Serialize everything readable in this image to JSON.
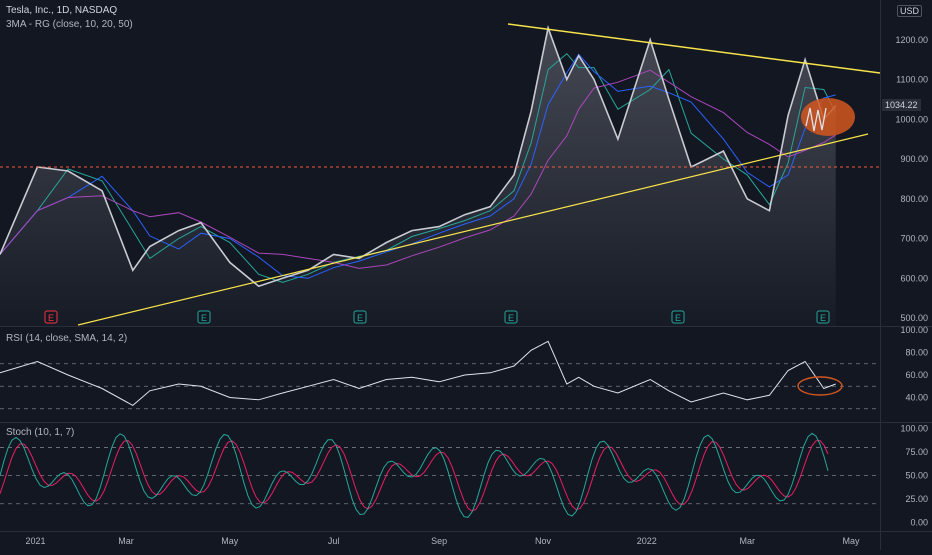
{
  "symbol_title": "Tesla, Inc., 1D, NASDAQ",
  "indicator_ma": "3MA - RG (close, 10, 20, 50)",
  "indicator_rsi": "RSI (14, close, SMA, 14, 2)",
  "indicator_stoch": "Stoch (10, 1, 7)",
  "currency": "USD",
  "last_price": "1034.22",
  "colors": {
    "background": "#131722",
    "price": "#c9cbd2",
    "ma_fast": "#26a69a",
    "ma_mid": "#2962ff",
    "ma_slow": "#ab47bc",
    "trendline": "#f7e34b",
    "support_level": "#f15a3a",
    "highlight": "#d2571f",
    "rsi": "#e0e3eb",
    "stoch_k": "#26a69a",
    "stoch_d": "#e91e63",
    "earnings_up": "#26a69a",
    "earnings_down": "#f23645"
  },
  "chart_data": [
    {
      "type": "line",
      "panel": "price",
      "x_tick_labels": [
        "2021",
        "Mar",
        "May",
        "Jul",
        "Sep",
        "Nov",
        "2022",
        "Mar",
        "May"
      ],
      "y_tick_labels": [
        "500.00",
        "600.00",
        "700.00",
        "800.00",
        "900.00",
        "1000.00",
        "1100.00",
        "1200.00"
      ],
      "ylim": [
        480,
        1300
      ],
      "scale": "linear",
      "x": [
        "2020-12-17",
        "2021-01-08",
        "2021-01-26",
        "2021-02-15",
        "2021-03-05",
        "2021-03-15",
        "2021-04-01",
        "2021-04-14",
        "2021-05-01",
        "2021-05-18",
        "2021-06-01",
        "2021-06-16",
        "2021-07-01",
        "2021-07-16",
        "2021-08-01",
        "2021-08-16",
        "2021-09-01",
        "2021-09-16",
        "2021-10-01",
        "2021-10-15",
        "2021-10-25",
        "2021-11-04",
        "2021-11-15",
        "2021-11-22",
        "2021-12-01",
        "2021-12-15",
        "2022-01-03",
        "2022-01-14",
        "2022-01-27",
        "2022-02-15",
        "2022-03-01",
        "2022-03-14",
        "2022-03-25",
        "2022-04-04",
        "2022-04-15",
        "2022-04-22"
      ],
      "series": [
        {
          "values": [
            660,
            880,
            870,
            820,
            620,
            680,
            720,
            740,
            640,
            580,
            600,
            620,
            660,
            650,
            690,
            720,
            730,
            760,
            780,
            860,
            1020,
            1230,
            1100,
            1160,
            1100,
            950,
            1200,
            1050,
            880,
            920,
            800,
            770,
            1010,
            1150,
            1000,
            1034.22
          ]
        }
      ],
      "annotations": [
        "E",
        "E",
        "E",
        "E",
        "E",
        "E"
      ],
      "support_level": 880
    },
    {
      "type": "line",
      "panel": "rsi",
      "ylim": [
        20,
        100
      ],
      "y_tick_labels": [
        "100.00",
        "80.00",
        "60.00",
        "40.00"
      ],
      "bands": [
        70,
        50,
        30
      ],
      "x": [
        "2020-12-17",
        "2021-01-08",
        "2021-01-26",
        "2021-02-15",
        "2021-03-05",
        "2021-03-15",
        "2021-04-01",
        "2021-04-14",
        "2021-05-01",
        "2021-05-18",
        "2021-06-01",
        "2021-06-16",
        "2021-07-01",
        "2021-07-16",
        "2021-08-01",
        "2021-08-16",
        "2021-09-01",
        "2021-09-16",
        "2021-10-01",
        "2021-10-15",
        "2021-10-25",
        "2021-11-04",
        "2021-11-15",
        "2021-11-22",
        "2021-12-01",
        "2021-12-15",
        "2022-01-03",
        "2022-01-14",
        "2022-01-27",
        "2022-02-15",
        "2022-03-01",
        "2022-03-14",
        "2022-03-25",
        "2022-04-04",
        "2022-04-15",
        "2022-04-22"
      ],
      "series": [
        {
          "values": [
            62,
            72,
            60,
            48,
            33,
            46,
            52,
            50,
            40,
            38,
            44,
            50,
            56,
            48,
            56,
            58,
            54,
            60,
            62,
            68,
            82,
            90,
            52,
            58,
            50,
            44,
            56,
            46,
            36,
            44,
            38,
            42,
            64,
            72,
            48,
            52
          ]
        }
      ]
    },
    {
      "type": "line",
      "panel": "stoch",
      "ylim": [
        -8,
        105
      ],
      "y_tick_labels": [
        "100.00",
        "75.00",
        "50.00",
        "25.00",
        "0.00"
      ],
      "bands": [
        80,
        50,
        20
      ],
      "x_tick_labels": [
        "2021",
        "Mar",
        "May",
        "Jul",
        "Sep",
        "Nov",
        "2022",
        "Mar",
        "May"
      ]
    }
  ]
}
